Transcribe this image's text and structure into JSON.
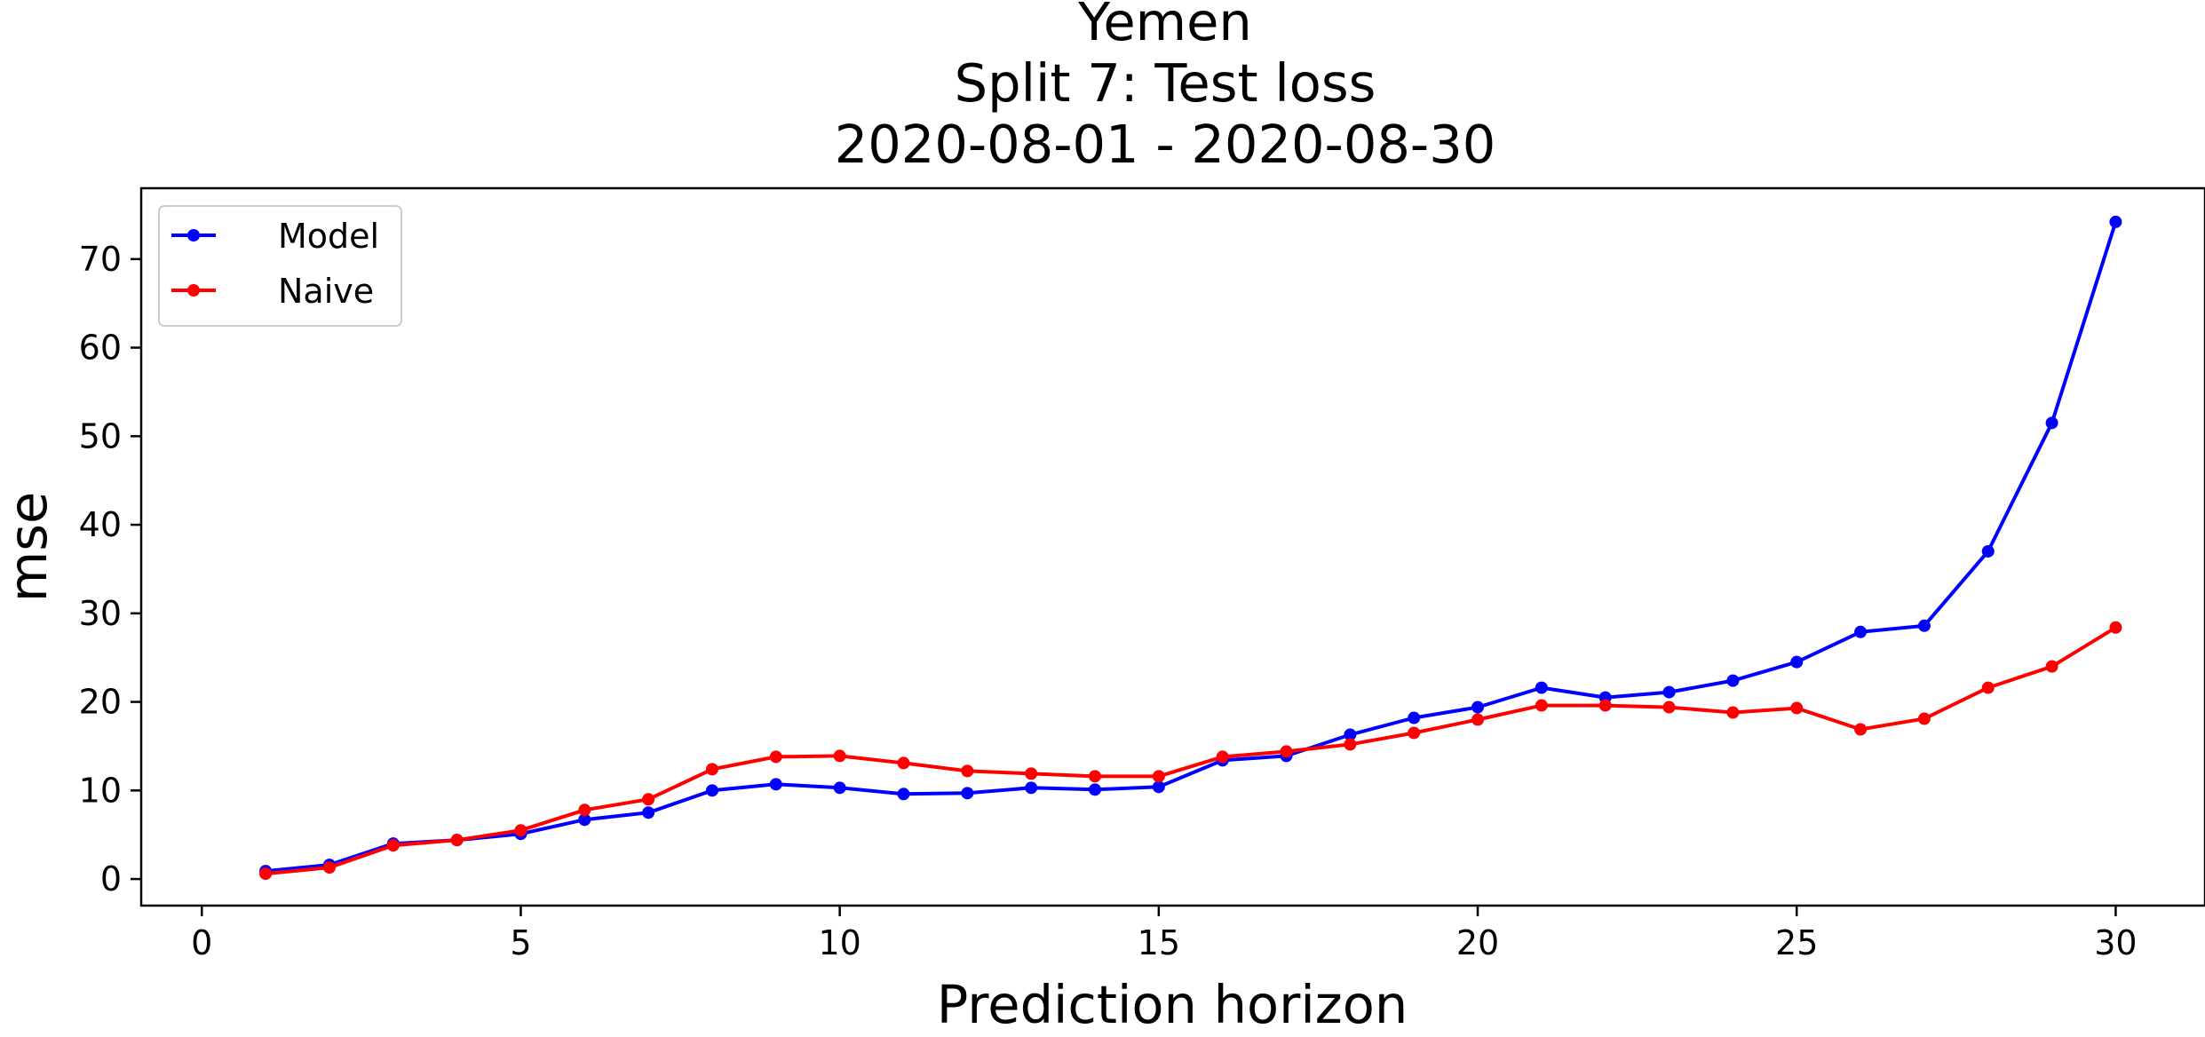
{
  "chart_data": {
    "type": "line",
    "title_lines": [
      "Yemen",
      "Split 7: Test loss",
      "2020-08-01 - 2020-08-30"
    ],
    "xlabel": "Prediction horizon",
    "ylabel": "mse",
    "xlim": [
      -0.95,
      31.4
    ],
    "ylim": [
      -3,
      78
    ],
    "x_ticks": [
      0,
      5,
      10,
      15,
      20,
      25,
      30
    ],
    "y_ticks": [
      0,
      10,
      20,
      30,
      40,
      50,
      60,
      70
    ],
    "grid": false,
    "legend_position": "upper left",
    "x": [
      1,
      2,
      3,
      4,
      5,
      6,
      7,
      8,
      9,
      10,
      11,
      12,
      13,
      14,
      15,
      16,
      17,
      18,
      19,
      20,
      21,
      22,
      23,
      24,
      25,
      26,
      27,
      28,
      29,
      30
    ],
    "series": [
      {
        "name": "Model",
        "color": "#0000ff",
        "marker": "circle",
        "values": [
          0.9,
          1.6,
          4.0,
          4.4,
          5.1,
          6.7,
          7.5,
          10.0,
          10.7,
          10.3,
          9.6,
          9.7,
          10.3,
          10.1,
          10.4,
          13.4,
          13.9,
          16.3,
          18.2,
          19.4,
          21.6,
          20.5,
          21.1,
          22.4,
          24.5,
          27.9,
          28.6,
          37.0,
          51.5,
          74.2
        ]
      },
      {
        "name": "Naive",
        "color": "#ff0000",
        "marker": "circle",
        "values": [
          0.6,
          1.3,
          3.8,
          4.4,
          5.5,
          7.8,
          9.0,
          12.4,
          13.8,
          13.9,
          13.1,
          12.2,
          11.9,
          11.6,
          11.6,
          13.8,
          14.4,
          15.2,
          16.5,
          18.0,
          19.6,
          19.6,
          19.4,
          18.8,
          19.3,
          16.9,
          18.1,
          21.6,
          24.0,
          28.4
        ]
      }
    ]
  }
}
